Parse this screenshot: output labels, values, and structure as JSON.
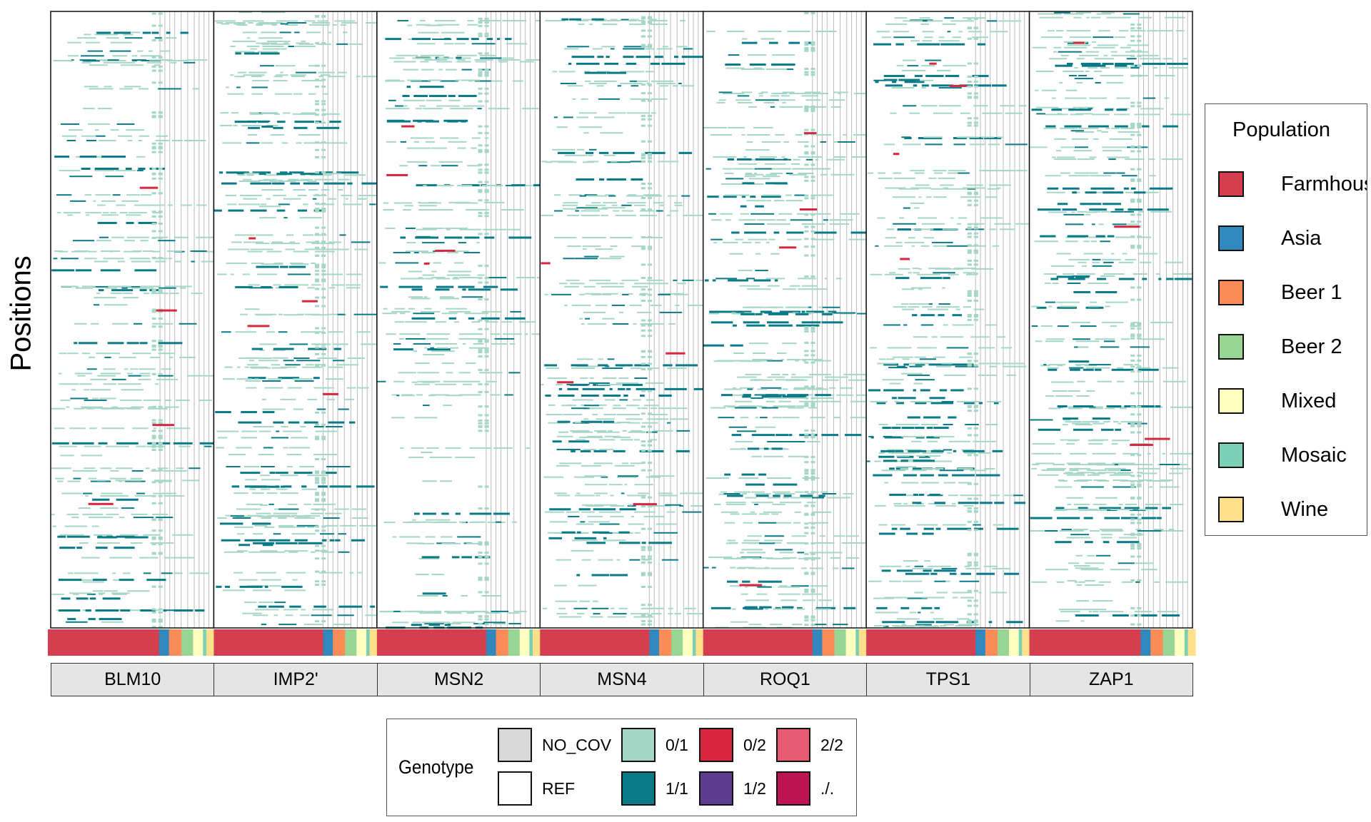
{
  "chart_data": {
    "type": "heatmap",
    "ylabel": "Positions",
    "xlabel": "",
    "facets": [
      "BLM10",
      "IMP2'",
      "MSN2",
      "MSN4",
      "ROQ1",
      "TPS1",
      "ZAP1"
    ],
    "population_legend": {
      "title": "Population",
      "items": [
        {
          "label": "Farmhouse",
          "color": "#d53e4f"
        },
        {
          "label": "Asia",
          "color": "#3288bd"
        },
        {
          "label": "Beer 1",
          "color": "#fc8d59"
        },
        {
          "label": "Beer 2",
          "color": "#99d594"
        },
        {
          "label": "Mixed",
          "color": "#ffffbf"
        },
        {
          "label": "Mosaic",
          "color": "#7bcfb5"
        },
        {
          "label": "Wine",
          "color": "#fee08b"
        }
      ]
    },
    "population_column_fractions": {
      "Farmhouse": 0.67,
      "Asia": 0.06,
      "Beer 1": 0.075,
      "Beer 2": 0.07,
      "Mixed": 0.06,
      "Mosaic": 0.02,
      "Wine": 0.045
    },
    "genotype_legend": {
      "title": "Genotype",
      "items": [
        {
          "label": "NO_COV",
          "color": "#d9d9d9"
        },
        {
          "label": "REF",
          "color": "#ffffff"
        },
        {
          "label": "0/1",
          "color": "#a6d6c6"
        },
        {
          "label": "1/1",
          "color": "#0a7a87"
        },
        {
          "label": "0/2",
          "color": "#d7263d"
        },
        {
          "label": "1/2",
          "color": "#5e3c8f"
        },
        {
          "label": "2/2",
          "color": "#e65a72"
        },
        {
          "label": "./.",
          "color": "#bd1452"
        }
      ]
    }
  }
}
